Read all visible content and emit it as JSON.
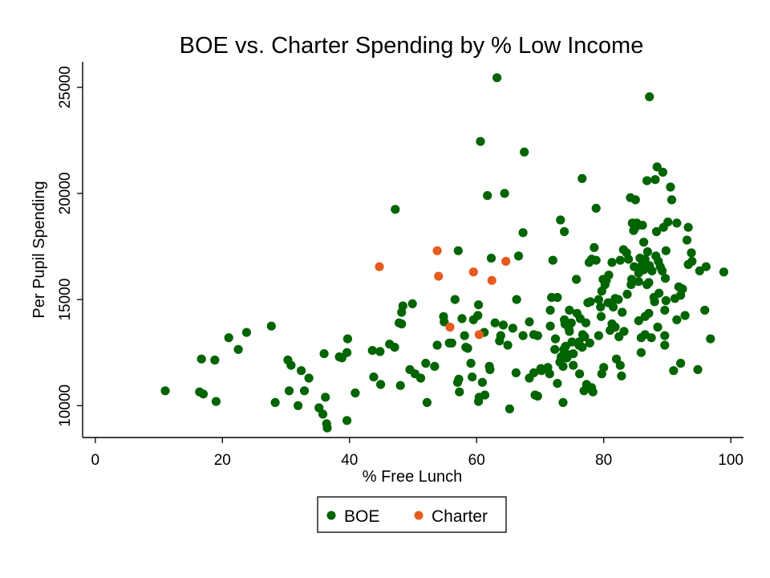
{
  "chart_data": {
    "type": "scatter",
    "title": "BOE vs. Charter Spending by % Low Income",
    "xlabel": "% Free Lunch",
    "ylabel": "Per Pupil Spending",
    "xlim": [
      -2,
      102
    ],
    "ylim": [
      8500,
      26200
    ],
    "xticks": [
      0,
      20,
      40,
      60,
      80,
      100
    ],
    "yticks": [
      10000,
      15000,
      20000,
      25000
    ],
    "grid": false,
    "legend_position": "bottom-center",
    "series": [
      {
        "name": "BOE",
        "color": "#006400",
        "points": [
          [
            11,
            10700
          ],
          [
            16.4,
            10650
          ],
          [
            17,
            10550
          ],
          [
            19,
            10200
          ],
          [
            16.7,
            12200
          ],
          [
            18.8,
            12150
          ],
          [
            21,
            13200
          ],
          [
            22.5,
            12650
          ],
          [
            23.8,
            13450
          ],
          [
            27.7,
            13750
          ],
          [
            28.3,
            10150
          ],
          [
            30.5,
            10700
          ],
          [
            30.3,
            12150
          ],
          [
            30.8,
            11900
          ],
          [
            31.9,
            10000
          ],
          [
            32.4,
            11650
          ],
          [
            32.9,
            10700
          ],
          [
            33.6,
            11300
          ],
          [
            35.2,
            9900
          ],
          [
            35.8,
            9600
          ],
          [
            36.2,
            10400
          ],
          [
            36.4,
            9150
          ],
          [
            36.5,
            8950
          ],
          [
            36,
            12450
          ],
          [
            38.4,
            12300
          ],
          [
            38.8,
            12250
          ],
          [
            39.6,
            12500
          ],
          [
            39.7,
            13150
          ],
          [
            39.6,
            9300
          ],
          [
            40.9,
            10600
          ],
          [
            43.6,
            12600
          ],
          [
            43.8,
            11350
          ],
          [
            44.9,
            11000
          ],
          [
            44.8,
            12550
          ],
          [
            46.3,
            12900
          ],
          [
            47.1,
            12750
          ],
          [
            47.2,
            19250
          ],
          [
            47.8,
            13900
          ],
          [
            48.2,
            13850
          ],
          [
            48.2,
            14400
          ],
          [
            48.4,
            14700
          ],
          [
            48,
            10950
          ],
          [
            49.5,
            11700
          ],
          [
            49.9,
            14800
          ],
          [
            50.3,
            11500
          ],
          [
            51.2,
            11300
          ],
          [
            52,
            12000
          ],
          [
            52.2,
            10150
          ],
          [
            53.4,
            11850
          ],
          [
            53.8,
            12850
          ],
          [
            54.8,
            14200
          ],
          [
            54.9,
            13950
          ],
          [
            55.7,
            12950
          ],
          [
            56.6,
            15000
          ],
          [
            56.1,
            12950
          ],
          [
            57.1,
            17300
          ],
          [
            57,
            11100
          ],
          [
            57.2,
            11250
          ],
          [
            57.3,
            10650
          ],
          [
            57.7,
            14100
          ],
          [
            58.1,
            13300
          ],
          [
            58.3,
            12750
          ],
          [
            58.6,
            12700
          ],
          [
            59.1,
            12000
          ],
          [
            59.3,
            11350
          ],
          [
            59.5,
            14050
          ],
          [
            60.2,
            14250
          ],
          [
            60.3,
            14750
          ],
          [
            60.3,
            10200
          ],
          [
            60.4,
            10400
          ],
          [
            60.6,
            22450
          ],
          [
            60.9,
            11100
          ],
          [
            61.2,
            13450
          ],
          [
            61.3,
            10500
          ],
          [
            61.7,
            19900
          ],
          [
            62,
            11850
          ],
          [
            62.1,
            11700
          ],
          [
            62.3,
            16950
          ],
          [
            62.9,
            13900
          ],
          [
            63.2,
            25450
          ],
          [
            63.6,
            13050
          ],
          [
            63.8,
            13300
          ],
          [
            64.2,
            13800
          ],
          [
            64.4,
            20000
          ],
          [
            64.9,
            12850
          ],
          [
            65.2,
            9850
          ],
          [
            65.7,
            13650
          ],
          [
            66.2,
            11550
          ],
          [
            66.3,
            15000
          ],
          [
            66.6,
            17050
          ],
          [
            67.3,
            18150
          ],
          [
            67.3,
            13300
          ],
          [
            67.5,
            21950
          ],
          [
            68.3,
            11300
          ],
          [
            68.3,
            13950
          ],
          [
            69,
            13350
          ],
          [
            69,
            11550
          ],
          [
            69.2,
            10500
          ],
          [
            69.6,
            10450
          ],
          [
            69.6,
            13300
          ],
          [
            70.1,
            11750
          ],
          [
            70.2,
            11650
          ],
          [
            71.2,
            11800
          ],
          [
            71.5,
            11500
          ],
          [
            71.6,
            13750
          ],
          [
            71.6,
            14500
          ],
          [
            71.8,
            15100
          ],
          [
            72,
            16850
          ],
          [
            72.4,
            13150
          ],
          [
            72.3,
            12650
          ],
          [
            72.7,
            15100
          ],
          [
            72.7,
            11050
          ],
          [
            73.2,
            18750
          ],
          [
            73.3,
            12300
          ],
          [
            73.1,
            12050
          ],
          [
            73.6,
            11850
          ],
          [
            73.7,
            12650
          ],
          [
            73.8,
            14050
          ],
          [
            73.9,
            13850
          ],
          [
            73.8,
            18200
          ],
          [
            73.6,
            10150
          ],
          [
            74,
            12800
          ],
          [
            74.2,
            12250
          ],
          [
            74.5,
            12400
          ],
          [
            74.5,
            13650
          ],
          [
            74.6,
            14500
          ],
          [
            74.6,
            13500
          ],
          [
            74.9,
            13900
          ],
          [
            75,
            13000
          ],
          [
            75.2,
            12450
          ],
          [
            75.2,
            11900
          ],
          [
            75.7,
            15950
          ],
          [
            75.8,
            14350
          ],
          [
            76.1,
            13000
          ],
          [
            76.1,
            12850
          ],
          [
            76.2,
            11500
          ],
          [
            76.3,
            14100
          ],
          [
            76.6,
            12750
          ],
          [
            76.6,
            20700
          ],
          [
            76.7,
            13350
          ],
          [
            76.9,
            10700
          ],
          [
            77,
            13250
          ],
          [
            77.2,
            13900
          ],
          [
            77.3,
            11000
          ],
          [
            77.5,
            14850
          ],
          [
            77.7,
            16750
          ],
          [
            77.8,
            12950
          ],
          [
            77.9,
            14900
          ],
          [
            78.1,
            16900
          ],
          [
            78.1,
            10850
          ],
          [
            78.3,
            10650
          ],
          [
            78.5,
            17450
          ],
          [
            78.8,
            16850
          ],
          [
            78.8,
            19300
          ],
          [
            79.2,
            15000
          ],
          [
            79.2,
            13300
          ],
          [
            79.5,
            14650
          ],
          [
            79.6,
            14200
          ],
          [
            79.7,
            15400
          ],
          [
            79.7,
            11500
          ],
          [
            79.9,
            15950
          ],
          [
            80,
            11800
          ],
          [
            80.2,
            15700
          ],
          [
            80.4,
            15900
          ],
          [
            80.7,
            14850
          ],
          [
            80.8,
            16150
          ],
          [
            81.3,
            13850
          ],
          [
            81,
            13550
          ],
          [
            81.3,
            16750
          ],
          [
            81.5,
            14650
          ],
          [
            81.8,
            15050
          ],
          [
            81.8,
            13700
          ],
          [
            82,
            12200
          ],
          [
            82.3,
            15000
          ],
          [
            82.4,
            13250
          ],
          [
            82.6,
            16850
          ],
          [
            82.6,
            11900
          ],
          [
            82.8,
            11400
          ],
          [
            82.9,
            14400
          ],
          [
            83.1,
            17350
          ],
          [
            83.2,
            13500
          ],
          [
            83.6,
            17200
          ],
          [
            83.7,
            15250
          ],
          [
            83.9,
            16900
          ],
          [
            84.2,
            19800
          ],
          [
            84.3,
            15700
          ],
          [
            84.4,
            15950
          ],
          [
            84.5,
            18600
          ],
          [
            84.7,
            18250
          ],
          [
            84.8,
            16550
          ],
          [
            85,
            18400
          ],
          [
            85,
            19700
          ],
          [
            85.2,
            18600
          ],
          [
            85.5,
            14000
          ],
          [
            85.5,
            16250
          ],
          [
            85.5,
            15850
          ],
          [
            85.7,
            16950
          ],
          [
            85.9,
            12500
          ],
          [
            85.9,
            13200
          ],
          [
            86,
            16600
          ],
          [
            86.1,
            18500
          ],
          [
            86.3,
            17700
          ],
          [
            86.3,
            16400
          ],
          [
            86.5,
            16900
          ],
          [
            86.5,
            14200
          ],
          [
            86.5,
            13350
          ],
          [
            86.8,
            20600
          ],
          [
            86.8,
            15700
          ],
          [
            86.9,
            17250
          ],
          [
            87.1,
            15800
          ],
          [
            87.1,
            14350
          ],
          [
            87.2,
            24550
          ],
          [
            87.2,
            16600
          ],
          [
            87.5,
            13200
          ],
          [
            87.6,
            16350
          ],
          [
            87.9,
            15100
          ],
          [
            88,
            14900
          ],
          [
            88.1,
            20650
          ],
          [
            88.2,
            17050
          ],
          [
            88.4,
            21250
          ],
          [
            88.3,
            18200
          ],
          [
            88.5,
            13700
          ],
          [
            88.6,
            16800
          ],
          [
            88.7,
            15300
          ],
          [
            88.9,
            16550
          ],
          [
            89.2,
            16350
          ],
          [
            89.3,
            21000
          ],
          [
            89.4,
            18400
          ],
          [
            89.6,
            14500
          ],
          [
            89.6,
            13300
          ],
          [
            89.6,
            12850
          ],
          [
            89.7,
            16000
          ],
          [
            89.8,
            14950
          ],
          [
            89.8,
            17300
          ],
          [
            90.1,
            18650
          ],
          [
            90.5,
            20300
          ],
          [
            90.7,
            19700
          ],
          [
            91,
            11650
          ],
          [
            91.2,
            15050
          ],
          [
            91.5,
            18600
          ],
          [
            91.5,
            14050
          ],
          [
            91.8,
            15600
          ],
          [
            92.1,
            12000
          ],
          [
            92.1,
            15200
          ],
          [
            92.4,
            15500
          ],
          [
            92.8,
            14250
          ],
          [
            93.1,
            17800
          ],
          [
            93.3,
            18400
          ],
          [
            93.3,
            16650
          ],
          [
            93.8,
            17200
          ],
          [
            93.9,
            16800
          ],
          [
            94.8,
            11700
          ],
          [
            95.1,
            16350
          ],
          [
            95.9,
            14500
          ],
          [
            96.1,
            16550
          ],
          [
            96.8,
            13150
          ],
          [
            98.9,
            16300
          ]
        ]
      },
      {
        "name": "Charter",
        "color": "#e85a1e",
        "points": [
          [
            44.7,
            16550
          ],
          [
            53.8,
            17300
          ],
          [
            54,
            16100
          ],
          [
            55.8,
            13700
          ],
          [
            59.5,
            16300
          ],
          [
            60.4,
            13350
          ],
          [
            62.4,
            15900
          ],
          [
            64.6,
            16800
          ]
        ]
      }
    ]
  }
}
